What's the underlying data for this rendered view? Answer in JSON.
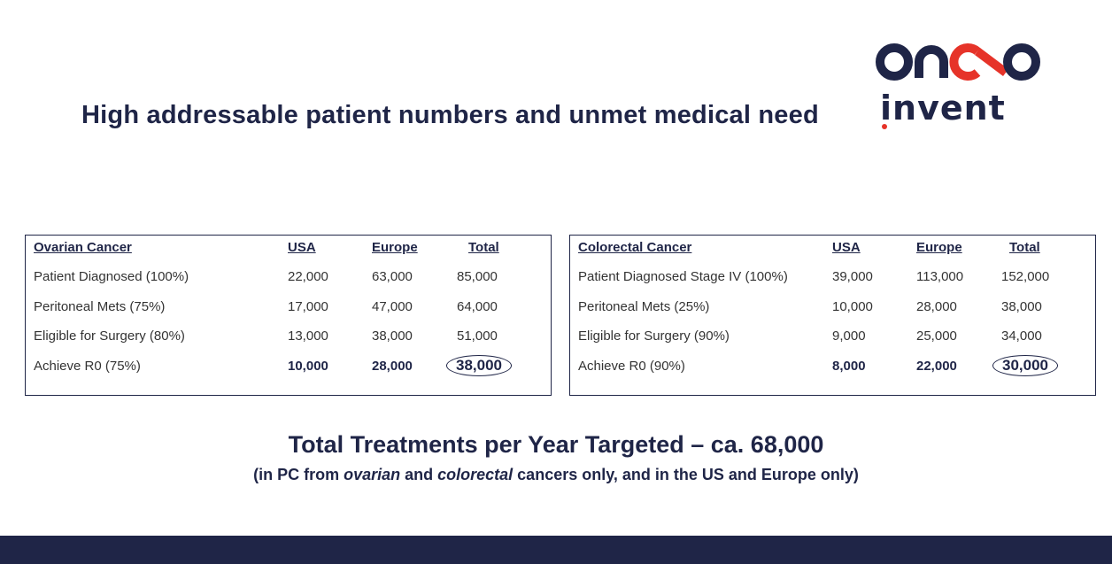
{
  "slide": {
    "title": "High addressable patient numbers and unmet medical need",
    "logo": {
      "top": "onco",
      "bottom": "invent"
    }
  },
  "ovarian": {
    "headers": [
      "Ovarian Cancer",
      "USA",
      "Europe",
      "Total"
    ],
    "rows": [
      [
        "Patient Diagnosed (100%)",
        "22,000",
        "63,000",
        "85,000"
      ],
      [
        "Peritoneal Mets (75%)",
        "17,000",
        "47,000",
        "64,000"
      ],
      [
        "Eligible for Surgery (80%)",
        "13,000",
        "38,000",
        "51,000"
      ],
      [
        "Achieve R0 (75%)",
        "10,000",
        "28,000",
        "38,000"
      ]
    ]
  },
  "colorectal": {
    "headers": [
      "Colorectal Cancer",
      "USA",
      "Europe",
      "Total"
    ],
    "rows": [
      [
        "Patient Diagnosed Stage IV (100%)",
        "39,000",
        "113,000",
        "152,000"
      ],
      [
        "Peritoneal Mets (25%)",
        "10,000",
        "28,000",
        "38,000"
      ],
      [
        "Eligible for Surgery (90%)",
        "9,000",
        "25,000",
        "34,000"
      ],
      [
        "Achieve R0 (90%)",
        "8,000",
        "22,000",
        "30,000"
      ]
    ]
  },
  "summary": {
    "headline": "Total Treatments per Year Targeted – ca. 68,000",
    "sub_1": "(in PC from ",
    "sub_italic_1": "ovarian",
    "sub_2": " and ",
    "sub_italic_2": "colorectal",
    "sub_3": " cancers only, and in the US and Europe only)"
  },
  "colors": {
    "navy": "#1f2547",
    "red": "#e63329"
  }
}
